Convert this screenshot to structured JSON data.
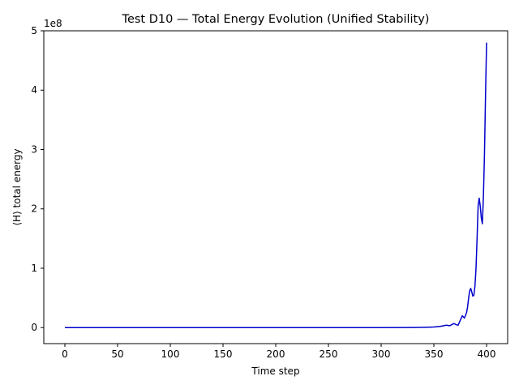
{
  "chart_data": {
    "type": "line",
    "title": "Test D10 — Total Energy Evolution (Unified Stability)",
    "xlabel": "Time step",
    "ylabel": "⟨H⟩ total energy",
    "y_offset_label": "1e8",
    "xlim": [
      -20,
      420
    ],
    "ylim": [
      -0.27,
      5.0
    ],
    "y_scale_factor": 100000000,
    "x_ticks": [
      0,
      50,
      100,
      150,
      200,
      250,
      300,
      350,
      400
    ],
    "y_ticks": [
      0,
      1,
      2,
      3,
      4,
      5
    ],
    "grid": false,
    "legend": "none",
    "series": [
      {
        "color": "#0000cc",
        "x": [
          0,
          50,
          100,
          150,
          200,
          250,
          300,
          330,
          340,
          345,
          350,
          353,
          356,
          359,
          362,
          365,
          367,
          369,
          371,
          373,
          375,
          377,
          379,
          381,
          382,
          383,
          384,
          385,
          386,
          387,
          388,
          389,
          390,
          391,
          392,
          393,
          394,
          395,
          396,
          397,
          398,
          399,
          400
        ],
        "values": [
          0,
          0,
          0,
          0,
          0,
          0,
          0,
          0.002,
          0.004,
          0.006,
          0.01,
          0.015,
          0.02,
          0.03,
          0.04,
          0.03,
          0.05,
          0.07,
          0.05,
          0.04,
          0.12,
          0.2,
          0.16,
          0.25,
          0.35,
          0.5,
          0.62,
          0.66,
          0.6,
          0.53,
          0.55,
          0.7,
          1.0,
          1.5,
          2.05,
          2.18,
          2.05,
          1.85,
          1.75,
          2.2,
          2.9,
          3.9,
          4.8
        ]
      }
    ]
  }
}
